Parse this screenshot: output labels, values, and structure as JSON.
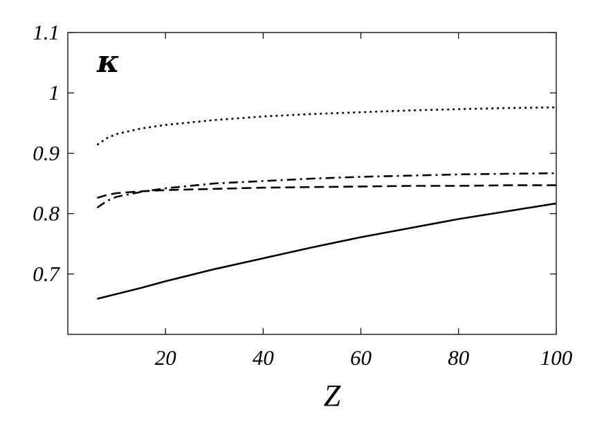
{
  "chart_data": {
    "type": "line",
    "annotation": "κ",
    "xlabel": "Z",
    "ylabel": "",
    "xlim": [
      0,
      100
    ],
    "ylim": [
      0.6,
      1.1
    ],
    "xticks": [
      20,
      40,
      60,
      80,
      100
    ],
    "yticks": [
      0.7,
      0.8,
      0.9,
      1,
      1.1
    ],
    "xtick_labels": [
      "20",
      "40",
      "60",
      "80",
      "100"
    ],
    "ytick_labels": [
      "0.7",
      "0.8",
      "0.9",
      "1",
      "1.1"
    ],
    "grid": false,
    "legend": "none",
    "x": [
      6,
      8,
      10,
      15,
      20,
      30,
      40,
      50,
      60,
      70,
      80,
      90,
      100
    ],
    "series": [
      {
        "style": "dotted",
        "values": [
          0.914,
          0.925,
          0.932,
          0.941,
          0.947,
          0.955,
          0.961,
          0.965,
          0.968,
          0.971,
          0.973,
          0.975,
          0.976
        ]
      },
      {
        "style": "dash-dot",
        "values": [
          0.81,
          0.821,
          0.828,
          0.836,
          0.842,
          0.85,
          0.854,
          0.858,
          0.861,
          0.863,
          0.865,
          0.866,
          0.867
        ]
      },
      {
        "style": "dashed",
        "values": [
          0.826,
          0.831,
          0.834,
          0.837,
          0.839,
          0.841,
          0.843,
          0.844,
          0.845,
          0.846,
          0.846,
          0.847,
          0.847
        ]
      },
      {
        "style": "solid",
        "values": [
          0.659,
          0.663,
          0.667,
          0.677,
          0.688,
          0.708,
          0.726,
          0.744,
          0.761,
          0.776,
          0.791,
          0.804,
          0.817
        ]
      }
    ]
  }
}
